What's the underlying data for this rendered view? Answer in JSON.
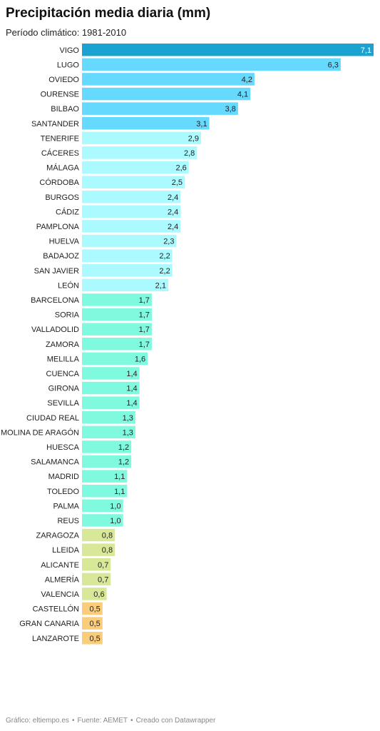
{
  "chart_data": {
    "type": "bar",
    "orientation": "horizontal",
    "title": "Precipitación media diaria (mm)",
    "subtitle": "Período climático: 1981-2010",
    "categories": [
      "VIGO",
      "LUGO",
      "OVIEDO",
      "OURENSE",
      "BILBAO",
      "SANTANDER",
      "TENERIFE",
      "CÁCERES",
      "MÁLAGA",
      "CÓRDOBA",
      "BURGOS",
      "CÁDIZ",
      "PAMPLONA",
      "HUELVA",
      "BADAJOZ",
      "SAN JAVIER",
      "LEÓN",
      "BARCELONA",
      "SORIA",
      "VALLADOLID",
      "ZAMORA",
      "MELILLA",
      "CUENCA",
      "GIRONA",
      "SEVILLA",
      "CIUDAD REAL",
      "MOLINA DE ARAGÓN",
      "HUESCA",
      "SALAMANCA",
      "MADRID",
      "TOLEDO",
      "PALMA",
      "REUS",
      "ZARAGOZA",
      "LLEIDA",
      "ALICANTE",
      "ALMERÍA",
      "VALENCIA",
      "CASTELLÓN",
      "GRAN CANARIA",
      "LANZAROTE"
    ],
    "values": [
      7.1,
      6.3,
      4.2,
      4.1,
      3.8,
      3.1,
      2.9,
      2.8,
      2.6,
      2.5,
      2.4,
      2.4,
      2.4,
      2.3,
      2.2,
      2.2,
      2.1,
      1.7,
      1.7,
      1.7,
      1.7,
      1.6,
      1.4,
      1.4,
      1.4,
      1.3,
      1.3,
      1.2,
      1.2,
      1.1,
      1.1,
      1.0,
      1.0,
      0.8,
      0.8,
      0.7,
      0.7,
      0.6,
      0.5,
      0.5,
      0.5
    ],
    "value_labels": [
      "7,1",
      "6,3",
      "4,2",
      "4,1",
      "3,8",
      "3,1",
      "2,9",
      "2,8",
      "2,6",
      "2,5",
      "2,4",
      "2,4",
      "2,4",
      "2,3",
      "2,2",
      "2,2",
      "2,1",
      "1,7",
      "1,7",
      "1,7",
      "1,7",
      "1,6",
      "1,4",
      "1,4",
      "1,4",
      "1,3",
      "1,3",
      "1,2",
      "1,2",
      "1,1",
      "1,1",
      "1,0",
      "1,0",
      "0,8",
      "0,8",
      "0,7",
      "0,7",
      "0,6",
      "0,5",
      "0,5",
      "0,5"
    ],
    "colors": [
      "#1aa3d1",
      "#66d9ff",
      "#66d9ff",
      "#66d9ff",
      "#66d9ff",
      "#66d9ff",
      "#aafaff",
      "#aafaff",
      "#aafaff",
      "#aafaff",
      "#aafaff",
      "#aafaff",
      "#aafaff",
      "#aafaff",
      "#aafaff",
      "#aafaff",
      "#aafaff",
      "#80fadf",
      "#80fadf",
      "#80fadf",
      "#80fadf",
      "#80fadf",
      "#80fadf",
      "#80fadf",
      "#80fadf",
      "#80fadf",
      "#80fadf",
      "#80fadf",
      "#80fadf",
      "#80fadf",
      "#80fadf",
      "#80fadf",
      "#80fadf",
      "#d8e899",
      "#d8e899",
      "#d8e899",
      "#d8e899",
      "#d8e899",
      "#fbcd7a",
      "#fbcd7a",
      "#fbcd7a"
    ],
    "xlim": [
      0,
      7.1
    ],
    "grid": false,
    "legend": "none"
  },
  "footer": {
    "grafico": "Gráfico: eltiempo.es",
    "fuente": "Fuente: AEMET",
    "creado": "Creado con Datawrapper",
    "separator": "•"
  }
}
